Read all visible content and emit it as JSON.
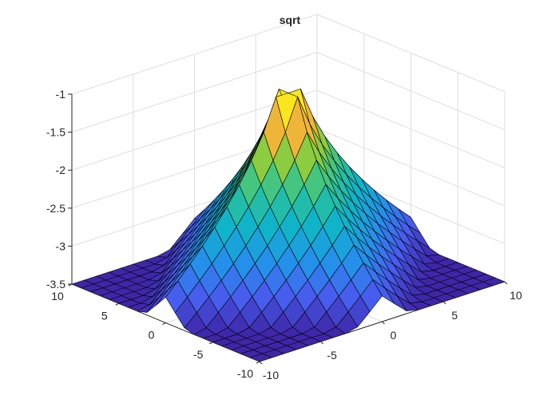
{
  "chart_data": {
    "type": "surface3d",
    "title": "sqrt",
    "xlabel": "",
    "ylabel": "",
    "zlabel": "",
    "xlim": [
      -10,
      10
    ],
    "ylim": [
      -10,
      10
    ],
    "zlim": [
      -3.5,
      -1
    ],
    "x_ticks": [
      "-10",
      "-5",
      "0",
      "5",
      "10"
    ],
    "y_ticks": [
      "-10",
      "-5",
      "0",
      "5",
      "10"
    ],
    "z_ticks": [
      "-3.5",
      "-3",
      "-2.5",
      "-2",
      "-1.5",
      "-1"
    ],
    "x": [
      -10,
      -9,
      -8,
      -7,
      -6,
      -5,
      -4,
      -3,
      -2,
      -1,
      0,
      1,
      2,
      3,
      4,
      5,
      6,
      7,
      8,
      9,
      10
    ],
    "y": [
      -10,
      -9,
      -8,
      -7,
      -6,
      -5,
      -4,
      -3,
      -2,
      -1,
      0,
      1,
      2,
      3,
      4,
      5,
      6,
      7,
      8,
      9,
      10
    ],
    "z_function": "-sqrt(|round(x)|+|round(y)|) (estimated from plot: apex -1 at origin, clipped to -3.5 at corner)",
    "colormap": [
      "#3e26a8",
      "#4760f1",
      "#2196e8",
      "#0fb5c8",
      "#2fc492",
      "#8ccc3f",
      "#f9b338",
      "#f9fb15"
    ],
    "grid": true
  }
}
